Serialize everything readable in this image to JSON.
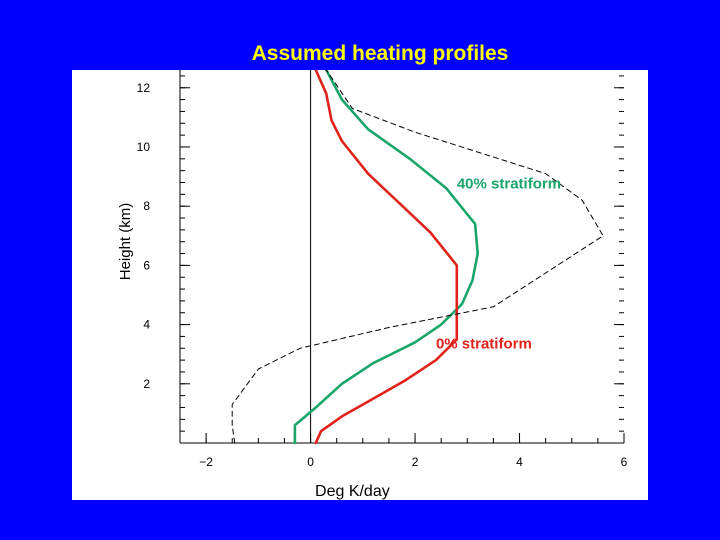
{
  "slide": {
    "title": "Assumed heating profiles"
  },
  "colors": {
    "background": "#0000ff",
    "title": "#ffff00",
    "panel": "#ffffff",
    "green_series": "#1aa56a",
    "red_series": "#e0221b",
    "dashed_series": "#000000"
  },
  "chart_data": {
    "type": "line",
    "title": "Assumed heating profiles",
    "xlabel": "Deg K/day",
    "ylabel": "Height (km)",
    "xlim": [
      -2.5,
      6.0
    ],
    "ylim": [
      0.0,
      12.6
    ],
    "xticks": [
      -2,
      0,
      2,
      4,
      6
    ],
    "xtick_labels": [
      "−2",
      "0",
      "2",
      "4",
      "6"
    ],
    "yticks": [
      2,
      4,
      6,
      8,
      10,
      12
    ],
    "ytick_labels": [
      "2",
      "4",
      "6",
      "8",
      "10",
      "12"
    ],
    "zero_line_x": 0,
    "grid": false,
    "series": [
      {
        "name": "40% stratiform",
        "color": "#1aa56a",
        "style": "solid",
        "x": [
          -0.3,
          -0.3,
          0.1,
          0.6,
          1.2,
          2.0,
          2.5,
          2.9,
          3.1,
          3.2,
          3.15,
          2.6,
          1.9,
          1.1,
          0.6,
          0.3
        ],
        "y": [
          0.0,
          0.6,
          1.2,
          2.0,
          2.7,
          3.4,
          4.0,
          4.7,
          5.5,
          6.4,
          7.4,
          8.6,
          9.6,
          10.6,
          11.6,
          12.6
        ]
      },
      {
        "name": "0% stratiform",
        "color": "#e0221b",
        "style": "solid",
        "x": [
          0.1,
          0.2,
          0.6,
          1.2,
          1.8,
          2.4,
          2.8,
          2.8,
          2.8,
          2.3,
          1.7,
          1.1,
          0.6,
          0.4,
          0.3,
          0.1
        ],
        "y": [
          0.0,
          0.4,
          0.9,
          1.5,
          2.1,
          2.8,
          3.5,
          4.5,
          6.0,
          7.1,
          8.1,
          9.1,
          10.2,
          10.9,
          11.8,
          12.6
        ]
      },
      {
        "name": "",
        "color": "#000000",
        "style": "dashed",
        "x": [
          -1.45,
          -1.5,
          -1.5,
          -1.0,
          -0.2,
          1.5,
          3.5,
          5.6,
          5.2,
          4.5,
          2.0,
          0.8,
          0.3
        ],
        "y": [
          0.0,
          0.6,
          1.3,
          2.5,
          3.2,
          3.9,
          4.6,
          7.0,
          8.2,
          9.1,
          10.5,
          11.3,
          12.6
        ]
      }
    ],
    "annotations": [
      {
        "text": "40% stratiform",
        "x": 2.8,
        "y": 8.6,
        "color": "#1aa56a"
      },
      {
        "text": "0% stratiform",
        "x": 2.4,
        "y": 3.2,
        "color": "#e0221b"
      }
    ]
  }
}
